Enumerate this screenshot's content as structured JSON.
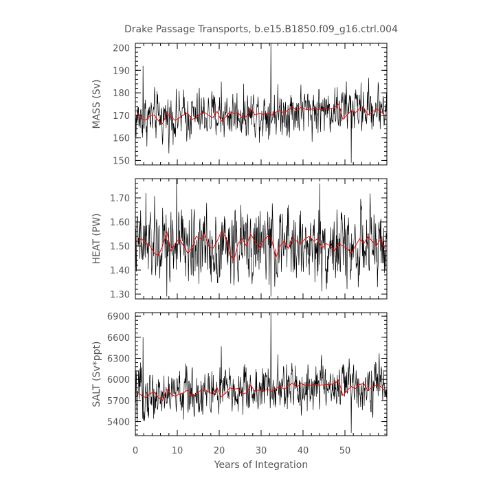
{
  "title": "Drake Passage Transports, b.e15.B1850.f09_g16.ctrl.004",
  "xlabel": "Years of Integration",
  "xticks": [
    "0",
    "10",
    "20",
    "30",
    "40",
    "50"
  ],
  "colors": {
    "raw": "#000000",
    "annual": "#ff0000",
    "frame": "#000000",
    "text": "#555555"
  },
  "chart_data": [
    {
      "type": "line",
      "ylabel": "MASS (Sv)",
      "xlim": [
        0,
        60
      ],
      "ylim": [
        148,
        202
      ],
      "yticks": [
        "150",
        "160",
        "170",
        "180",
        "190",
        "200"
      ],
      "ytick_values": [
        150,
        160,
        170,
        180,
        190,
        200
      ],
      "monthly": {
        "base": 168.5,
        "amplitude": 7.5,
        "trend": 0.09,
        "spikes": [
          [
            1.8,
            192
          ],
          [
            32.3,
            202
          ],
          [
            51.5,
            149
          ],
          [
            20.5,
            185
          ]
        ]
      },
      "annual": [
        170.8,
        168.2,
        167.9,
        169.8,
        170.1,
        167.6,
        166.3,
        170.9,
        169.4,
        167.8,
        168.9,
        170.2,
        171.0,
        168.2,
        168.9,
        170.6,
        171.3,
        170.0,
        169.0,
        171.8,
        167.4,
        169.1,
        171.6,
        170.9,
        171.2,
        168.8,
        169.5,
        173.0,
        170.2,
        170.8,
        170.5,
        171.0,
        170.1,
        171.4,
        172.2,
        171.0,
        172.5,
        173.9,
        172.0,
        173.5,
        172.8,
        172.4,
        173.0,
        172.7,
        172.6,
        173.1,
        172.9,
        173.4,
        175.0,
        168.2,
        170.2,
        172.0,
        171.2,
        173.0,
        173.4,
        170.2,
        171.6,
        172.8,
        171.9,
        170.0
      ]
    },
    {
      "type": "line",
      "ylabel": "HEAT (PW)",
      "xlim": [
        0,
        60
      ],
      "ylim": [
        1.28,
        1.78
      ],
      "yticks": [
        "1.30",
        "1.40",
        "1.50",
        "1.60",
        "1.70"
      ],
      "ytick_values": [
        1.3,
        1.4,
        1.5,
        1.6,
        1.7
      ],
      "monthly": {
        "base": 1.5,
        "amplitude": 0.11,
        "trend": 0.0,
        "spikes": [
          [
            2.5,
            1.72
          ],
          [
            9.8,
            1.78
          ],
          [
            32.3,
            1.29
          ],
          [
            7.5,
            1.29
          ],
          [
            44.0,
            1.76
          ]
        ]
      },
      "annual": [
        1.52,
        1.53,
        1.51,
        1.5,
        1.47,
        1.46,
        1.5,
        1.56,
        1.48,
        1.51,
        1.53,
        1.5,
        1.47,
        1.49,
        1.54,
        1.53,
        1.55,
        1.5,
        1.49,
        1.52,
        1.56,
        1.54,
        1.47,
        1.44,
        1.51,
        1.53,
        1.5,
        1.55,
        1.52,
        1.49,
        1.52,
        1.54,
        1.53,
        1.45,
        1.5,
        1.52,
        1.49,
        1.53,
        1.52,
        1.51,
        1.53,
        1.54,
        1.52,
        1.53,
        1.49,
        1.51,
        1.5,
        1.48,
        1.51,
        1.5,
        1.49,
        1.47,
        1.5,
        1.53,
        1.51,
        1.54,
        1.52,
        1.5,
        1.53,
        1.49
      ]
    },
    {
      "type": "line",
      "ylabel": "SALT (Sv*ppt)",
      "xlim": [
        0,
        60
      ],
      "ylim": [
        5200,
        6950
      ],
      "yticks": [
        "5400",
        "5700",
        "6000",
        "6300",
        "6600",
        "6900"
      ],
      "ytick_values": [
        5400,
        5700,
        6000,
        6300,
        6600,
        6900
      ],
      "monthly": {
        "base": 5760,
        "amplitude": 250,
        "trend": 3.2,
        "spikes": [
          [
            32.3,
            6950
          ],
          [
            51.5,
            5240
          ],
          [
            1.8,
            6600
          ],
          [
            20.5,
            6470
          ]
        ]
      },
      "annual": [
        5830,
        5770,
        5740,
        5800,
        5820,
        5740,
        5700,
        5860,
        5790,
        5760,
        5790,
        5810,
        5850,
        5760,
        5790,
        5840,
        5860,
        5820,
        5790,
        5880,
        5750,
        5800,
        5880,
        5860,
        5870,
        5790,
        5810,
        5920,
        5830,
        5850,
        5840,
        5860,
        5830,
        5870,
        5900,
        5860,
        5910,
        5950,
        5890,
        5940,
        5920,
        5910,
        5930,
        5920,
        5920,
        5930,
        5930,
        5940,
        5990,
        5770,
        5840,
        5900,
        5870,
        5930,
        5940,
        5840,
        5890,
        5920,
        5900,
        5840
      ]
    }
  ]
}
